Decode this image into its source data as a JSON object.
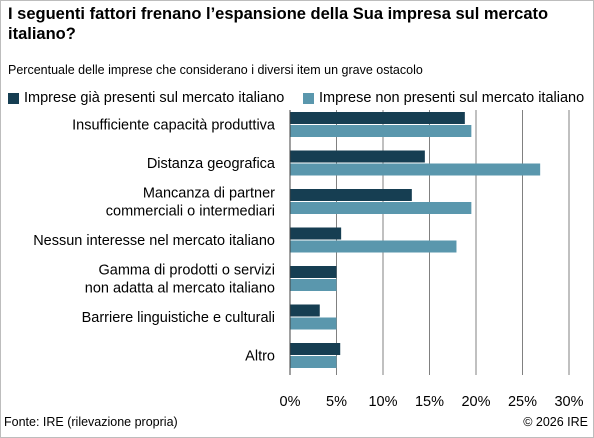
{
  "header": {
    "title": "I seguenti fattori frenano l’espansione della Sua impresa sul mercato italiano?",
    "subtitle": "Percentuale delle imprese che considerano i diversi item un grave ostacolo"
  },
  "footer": {
    "source": "Fonte: IRE (rilevazione propria)",
    "copyright": "© 2026 IRE"
  },
  "colors": {
    "series_dark": "#163e52",
    "series_light": "#5a97ad",
    "grid": "#808080",
    "axis": "#404040"
  },
  "chart_data": {
    "type": "bar",
    "orientation": "horizontal",
    "categories": [
      [
        "Insufficiente capacità produttiva"
      ],
      [
        "Distanza geografica"
      ],
      [
        "Mancanza di partner",
        "commerciali o intermediari"
      ],
      [
        "Nessun interesse nel mercato italiano"
      ],
      [
        "Gamma di prodotti o servizi",
        "non adatta al mercato italiano"
      ],
      [
        "Barriere linguistiche e culturali"
      ],
      [
        "Altro"
      ]
    ],
    "series": [
      {
        "name": "Imprese già presenti sul mercato italiano",
        "values": [
          18.8,
          14.5,
          13.1,
          5.5,
          5.0,
          3.2,
          5.4
        ]
      },
      {
        "name": "Imprese non presenti sul mercato italiano",
        "values": [
          19.5,
          26.9,
          19.5,
          17.9,
          5.0,
          5.0,
          5.0
        ]
      }
    ],
    "xlim": [
      0,
      30
    ],
    "xticks": [
      0,
      5,
      10,
      15,
      20,
      25,
      30
    ],
    "tick_format": "{v}%",
    "grid": "vertical",
    "legend_position": "top"
  }
}
